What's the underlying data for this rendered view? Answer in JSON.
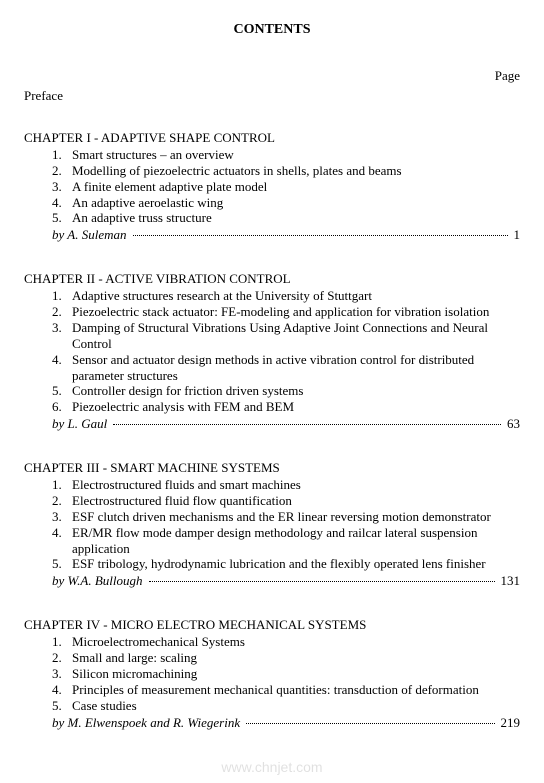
{
  "title": "CONTENTS",
  "page_label": "Page",
  "preface": "Preface",
  "watermark": "www.chnjet.com",
  "chapters": [
    {
      "heading": "CHAPTER I - ADAPTIVE SHAPE CONTROL",
      "items": [
        {
          "n": "1.",
          "text": "Smart structures – an overview"
        },
        {
          "n": "2.",
          "text": "Modelling of piezoelectric actuators in shells, plates and beams"
        },
        {
          "n": "3.",
          "text": "A finite element adaptive plate model"
        },
        {
          "n": "4.",
          "text": "An adaptive aeroelastic wing"
        },
        {
          "n": "5.",
          "text": "An adaptive truss structure"
        }
      ],
      "by_prefix": "by ",
      "by": "A. Suleman",
      "page": "1"
    },
    {
      "heading": "CHAPTER II - ACTIVE VIBRATION CONTROL",
      "items": [
        {
          "n": "1.",
          "text": "Adaptive structures research at the University of Stuttgart"
        },
        {
          "n": "2.",
          "text": "Piezoelectric stack actuator: FE-modeling and application for vibration isolation"
        },
        {
          "n": "3.",
          "text": "Damping of Structural Vibrations Using Adaptive Joint Connections and Neural Control"
        },
        {
          "n": "4.",
          "text": "Sensor and actuator design methods in active vibration control for distributed parameter structures"
        },
        {
          "n": "5.",
          "text": "Controller design for friction driven systems"
        },
        {
          "n": "6.",
          "text": "Piezoelectric analysis with FEM and BEM"
        }
      ],
      "by_prefix": "by ",
      "by": "L. Gaul",
      "page": "63"
    },
    {
      "heading": "CHAPTER III - SMART MACHINE SYSTEMS",
      "items": [
        {
          "n": "1.",
          "text": "Electrostructured fluids and smart machines"
        },
        {
          "n": "2.",
          "text": "Electrostructured fluid flow quantification"
        },
        {
          "n": "3.",
          "text": "ESF clutch driven mechanisms and the ER linear reversing motion demonstrator"
        },
        {
          "n": "4.",
          "text": "ER/MR flow mode damper design methodology and railcar lateral suspension application"
        },
        {
          "n": "5.",
          "text": "ESF tribology, hydrodynamic lubrication and the flexibly operated lens finisher"
        }
      ],
      "by_prefix": "by ",
      "by": "W.A. Bullough",
      "page": "131"
    },
    {
      "heading": "CHAPTER IV - MICRO ELECTRO MECHANICAL SYSTEMS",
      "items": [
        {
          "n": "1.",
          "text": "Microelectromechanical Systems"
        },
        {
          "n": "2.",
          "text": "Small and large: scaling"
        },
        {
          "n": "3.",
          "text": "Silicon micromachining"
        },
        {
          "n": "4.",
          "text": "Principles of measurement mechanical quantities: transduction of deformation"
        },
        {
          "n": "5.",
          "text": "Case studies"
        }
      ],
      "by_prefix": "by ",
      "by": "M. Elwenspoek and R. Wiegerink",
      "page": "219"
    }
  ]
}
